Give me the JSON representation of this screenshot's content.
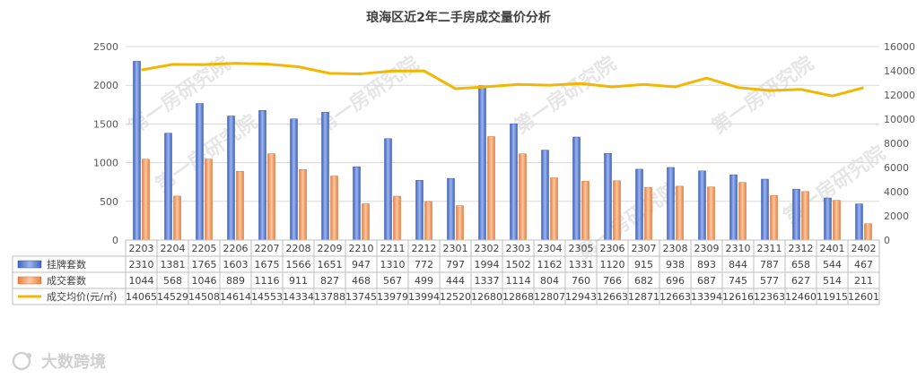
{
  "chart_data": {
    "type": "bar",
    "title": "琅海区近2年二手房成交量价分析",
    "categories": [
      "2203",
      "2204",
      "2205",
      "2206",
      "2207",
      "2208",
      "2209",
      "2210",
      "2211",
      "2212",
      "2301",
      "2302",
      "2303",
      "2304",
      "2305",
      "2306",
      "2307",
      "2308",
      "2309",
      "2310",
      "2311",
      "2312",
      "2401",
      "2402"
    ],
    "series": [
      {
        "name": "挂牌套数",
        "type": "bar",
        "axis": "left",
        "color": "#4a6fc9",
        "values": [
          2310,
          1381,
          1765,
          1603,
          1675,
          1566,
          1651,
          947,
          1310,
          772,
          797,
          1994,
          1502,
          1162,
          1331,
          1120,
          915,
          938,
          893,
          844,
          787,
          658,
          544,
          467
        ]
      },
      {
        "name": "成交套数",
        "type": "bar",
        "axis": "left",
        "color": "#f0925a",
        "values": [
          1044,
          568,
          1046,
          889,
          1116,
          911,
          827,
          468,
          567,
          499,
          444,
          1337,
          1114,
          804,
          760,
          766,
          682,
          696,
          687,
          745,
          577,
          627,
          514,
          211
        ]
      },
      {
        "name": "成交均价(元/㎡)",
        "type": "line",
        "axis": "right",
        "color": "#f2b705",
        "values": [
          14065,
          14529,
          14508,
          14614,
          14553,
          14334,
          13788,
          13745,
          13979,
          13994,
          12520,
          12680,
          12868,
          12807,
          12943,
          12663,
          12871,
          12663,
          13394,
          12616,
          12363,
          12460,
          11915,
          12601
        ]
      }
    ],
    "y_left": {
      "min": 0,
      "max": 2500,
      "ticks": [
        0,
        500,
        1000,
        1500,
        2000,
        2500
      ]
    },
    "y_right": {
      "min": 0,
      "max": 16000,
      "ticks": [
        0,
        2000,
        4000,
        6000,
        8000,
        10000,
        12000,
        14000,
        16000
      ]
    },
    "grid": true,
    "legend": "data-table"
  },
  "watermark": "第一房研究院",
  "brand": "大数跨境"
}
